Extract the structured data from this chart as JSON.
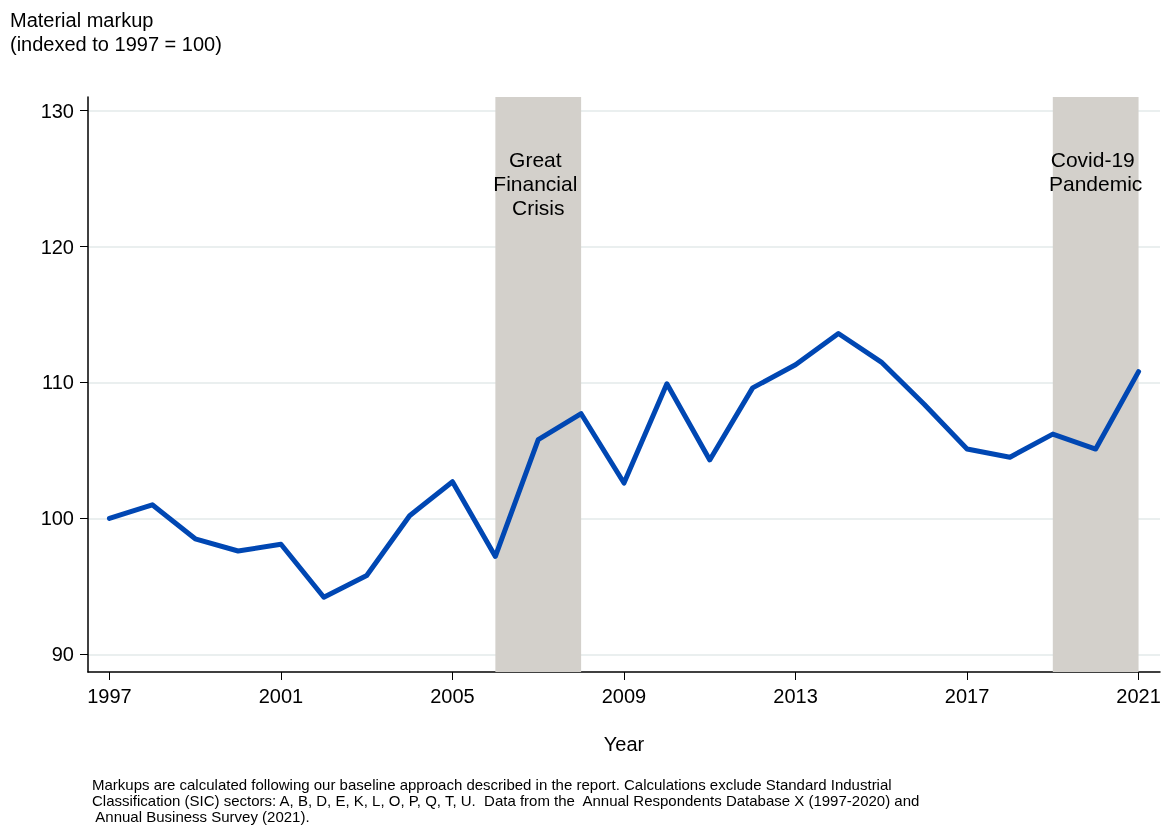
{
  "chart_data": {
    "type": "line",
    "ylabel": "Material markup (indexed to 1997 = 100)",
    "xlabel": "Year",
    "x": [
      1997,
      1998,
      1999,
      2000,
      2001,
      2002,
      2003,
      2004,
      2005,
      2006,
      2007,
      2008,
      2009,
      2010,
      2011,
      2012,
      2013,
      2014,
      2015,
      2016,
      2017,
      2018,
      2019,
      2020,
      2021
    ],
    "series": [
      {
        "color": "#0047b3",
        "values": [
          100,
          101.0,
          98.5,
          97.6,
          98.1,
          94.2,
          95.8,
          100.2,
          102.7,
          97.2,
          105.8,
          107.7,
          102.6,
          109.9,
          104.3,
          109.6,
          111.3,
          113.6,
          111.5,
          108.4,
          105.1,
          104.5,
          106.2,
          105.1,
          110.8
        ]
      }
    ],
    "xlim": [
      1996.5,
      2021.5
    ],
    "xticks": [
      1997,
      2001,
      2005,
      2009,
      2013,
      2017,
      2021
    ],
    "ylim": [
      88.7,
      131
    ],
    "yticks": [
      90,
      100,
      110,
      120,
      130
    ],
    "grid": "y",
    "marker": "none",
    "line_style": "solid",
    "bands": [
      {
        "axis": "x",
        "from": 2006,
        "to": 2008,
        "label": "Great Financial Crisis",
        "color": "#d3d0cb"
      },
      {
        "axis": "x",
        "from": 2019,
        "to": 2021,
        "label": "Covid-19 Pandemic",
        "color": "#d3d0cb"
      }
    ],
    "annotations": [
      "Markups are calculated following our baseline approach described in the report. Calculations exclude Standard Industrial Classification (SIC) sectors: A, B, D, E, K, L, O, P, Q, T, U.  Data from the  Annual Respondents Database X (1997-2020) and  Annual Business Survey (2021)."
    ]
  }
}
